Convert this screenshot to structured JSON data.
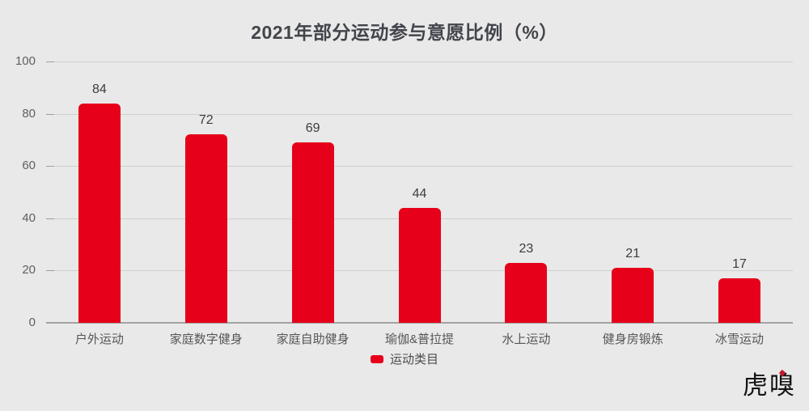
{
  "title": "2021年部分运动参与意愿比例（%）",
  "legend": {
    "label": "运动类目",
    "marker_color": "#e60019"
  },
  "watermark": {
    "text": "虎嗅"
  },
  "colors": {
    "background": "#e9e9e9",
    "bar": "#e60019",
    "title_text": "#43454c",
    "value_text": "#3d3d3d",
    "axis_text": "#5f5f5f",
    "gridline": "#cfcfcf",
    "zero_line": "#a3a3a3"
  },
  "chart_data": {
    "type": "bar",
    "title": "2021年部分运动参与意愿比例（%）",
    "categories": [
      "户外运动",
      "家庭数字健身",
      "家庭自助健身",
      "瑜伽&普拉提",
      "水上运动",
      "健身房锻炼",
      "冰雪运动"
    ],
    "values": [
      84,
      72,
      69,
      44,
      23,
      21,
      17
    ],
    "xlabel": "",
    "ylabel": "",
    "ylim": [
      0,
      100
    ],
    "yticks": [
      0,
      20,
      40,
      60,
      80,
      100
    ],
    "grid": true,
    "legend_entries": [
      "运动类目"
    ],
    "legend_position": "bottom-center",
    "bar_color": "#e60019",
    "value_labels_shown": true
  }
}
